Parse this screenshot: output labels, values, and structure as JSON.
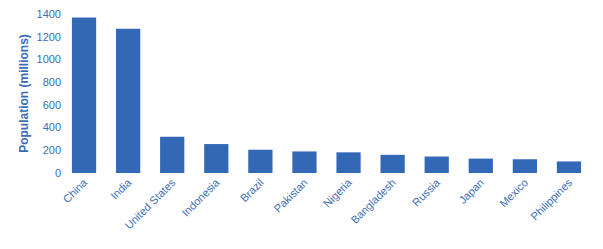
{
  "chart_data": {
    "type": "bar",
    "y_label": "Population (millions)",
    "categories": [
      "China",
      "India",
      "United States",
      "Indonesia",
      "Brazil",
      "Pakistan",
      "Nigeria",
      "Bangladesh",
      "Russia",
      "Japan",
      "Mexico",
      "Philippines"
    ],
    "values": [
      1370,
      1270,
      320,
      255,
      205,
      190,
      182,
      160,
      145,
      127,
      121,
      102
    ],
    "color": "#3368b7",
    "ylim": [
      0,
      1400
    ],
    "yticks": [
      0,
      200,
      400,
      600,
      800,
      1000,
      1200,
      1400
    ],
    "grid": false
  }
}
